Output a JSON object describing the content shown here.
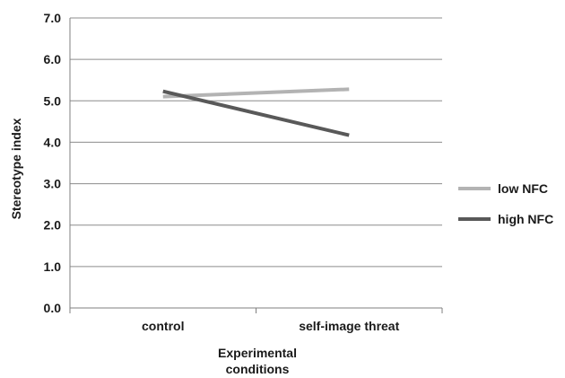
{
  "chart_data": {
    "type": "line",
    "categories": [
      "control",
      "self-image threat"
    ],
    "series": [
      {
        "name": "low NFC",
        "values": [
          5.1,
          5.28
        ],
        "color": "#b3b3b3"
      },
      {
        "name": "high NFC",
        "values": [
          5.23,
          4.17
        ],
        "color": "#595959"
      }
    ],
    "yticks": [
      "0.0",
      "1.0",
      "2.0",
      "3.0",
      "4.0",
      "5.0",
      "6.0",
      "7.0"
    ],
    "ylim": [
      0,
      7
    ],
    "ylabel": "Stereotype index",
    "xlabel_lines": [
      "Experimental",
      "conditions"
    ],
    "grid": true,
    "legend_position": "right"
  }
}
